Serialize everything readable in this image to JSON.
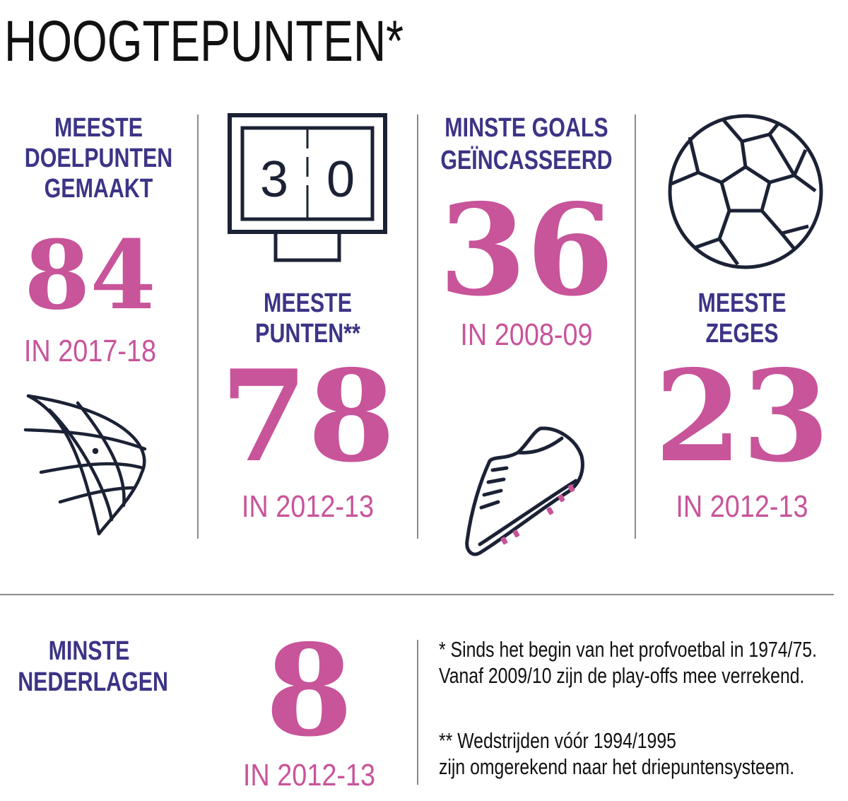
{
  "title": "HOOGTEPUNTEN*",
  "stats": {
    "goals_scored": {
      "label_lines": [
        "MEESTE",
        "DOELPUNTEN",
        "GEMAAKT"
      ],
      "value": "84",
      "season": "IN 2017-18"
    },
    "points": {
      "label_lines": [
        "MEESTE",
        "PUNTEN**"
      ],
      "value": "78",
      "season": "IN 2012-13"
    },
    "goals_conceded": {
      "label_lines": [
        "MINSTE GOALS",
        "GEÏNCASSEERD"
      ],
      "value": "36",
      "season": "IN 2008-09"
    },
    "wins": {
      "label_lines": [
        "MEESTE",
        "ZEGES"
      ],
      "value": "23",
      "season": "IN 2012-13"
    },
    "losses": {
      "label_lines": [
        "MINSTE",
        "NEDERLAGEN"
      ],
      "value": "8",
      "season": "IN 2012-13"
    }
  },
  "scoreboard": {
    "left": "3",
    "right": "0"
  },
  "footnotes": {
    "note1_lines": [
      "* Sinds het begin van het profvoetbal in 1974/75.",
      "Vanaf 2009/10 zijn de play-offs mee verrekend."
    ],
    "note2_lines": [
      "** Wedstrijden vóór 1994/1995",
      "zijn omgerekend naar het driepuntensysteem."
    ]
  },
  "colors": {
    "accent_pink": "#c8549a",
    "label_purple": "#3c3486",
    "icon_navy": "#1c2235"
  },
  "icons": [
    "goal-net-icon",
    "scoreboard-icon",
    "football-boot-icon",
    "soccer-ball-icon"
  ]
}
